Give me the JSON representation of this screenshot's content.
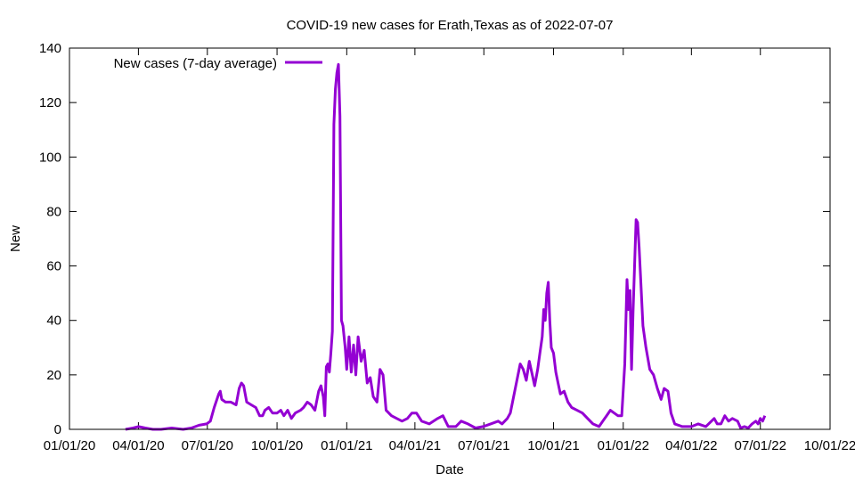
{
  "chart_data": {
    "type": "line",
    "title": "COVID-19 new cases for Erath,Texas as of 2022-07-07",
    "xlabel": "Date",
    "ylabel": "New",
    "xlim": [
      "2020-01-01",
      "2022-10-01"
    ],
    "ylim": [
      0,
      140
    ],
    "x_ticks": [
      "01/01/20",
      "04/01/20",
      "07/01/20",
      "10/01/20",
      "01/01/21",
      "04/01/21",
      "07/01/21",
      "10/01/21",
      "01/01/22",
      "04/01/22",
      "07/01/22",
      "10/01/22"
    ],
    "y_ticks": [
      0,
      20,
      40,
      60,
      80,
      100,
      120,
      140
    ],
    "grid": false,
    "legend_position": "top-left",
    "series": [
      {
        "name": "New cases (7-day average)",
        "color": "#9400d3",
        "points": [
          [
            "2020-03-15",
            0
          ],
          [
            "2020-03-25",
            0.5
          ],
          [
            "2020-04-01",
            1
          ],
          [
            "2020-04-10",
            0.5
          ],
          [
            "2020-04-20",
            0
          ],
          [
            "2020-05-01",
            0
          ],
          [
            "2020-05-15",
            0.5
          ],
          [
            "2020-05-30",
            0
          ],
          [
            "2020-06-10",
            0.5
          ],
          [
            "2020-06-20",
            1.5
          ],
          [
            "2020-06-30",
            2
          ],
          [
            "2020-07-05",
            3
          ],
          [
            "2020-07-10",
            8
          ],
          [
            "2020-07-16",
            13
          ],
          [
            "2020-07-18",
            14
          ],
          [
            "2020-07-20",
            11
          ],
          [
            "2020-07-25",
            10
          ],
          [
            "2020-08-01",
            10
          ],
          [
            "2020-08-08",
            9
          ],
          [
            "2020-08-12",
            15
          ],
          [
            "2020-08-15",
            17
          ],
          [
            "2020-08-18",
            16
          ],
          [
            "2020-08-22",
            10
          ],
          [
            "2020-08-28",
            9
          ],
          [
            "2020-09-03",
            8
          ],
          [
            "2020-09-08",
            5
          ],
          [
            "2020-09-12",
            5
          ],
          [
            "2020-09-15",
            7
          ],
          [
            "2020-09-20",
            8
          ],
          [
            "2020-09-25",
            6
          ],
          [
            "2020-10-01",
            6
          ],
          [
            "2020-10-06",
            7
          ],
          [
            "2020-10-10",
            5
          ],
          [
            "2020-10-15",
            7
          ],
          [
            "2020-10-20",
            4
          ],
          [
            "2020-10-25",
            6
          ],
          [
            "2020-11-01",
            7
          ],
          [
            "2020-11-05",
            8
          ],
          [
            "2020-11-10",
            10
          ],
          [
            "2020-11-15",
            9
          ],
          [
            "2020-11-20",
            7
          ],
          [
            "2020-11-25",
            14
          ],
          [
            "2020-11-28",
            16
          ],
          [
            "2020-12-01",
            12
          ],
          [
            "2020-12-03",
            5
          ],
          [
            "2020-12-05",
            23
          ],
          [
            "2020-12-07",
            24
          ],
          [
            "2020-12-09",
            21
          ],
          [
            "2020-12-11",
            28
          ],
          [
            "2020-12-13",
            36
          ],
          [
            "2020-12-15",
            112
          ],
          [
            "2020-12-17",
            125
          ],
          [
            "2020-12-19",
            131
          ],
          [
            "2020-12-21",
            134
          ],
          [
            "2020-12-23",
            115
          ],
          [
            "2020-12-25",
            40
          ],
          [
            "2020-12-27",
            38
          ],
          [
            "2020-12-30",
            30
          ],
          [
            "2021-01-01",
            22
          ],
          [
            "2021-01-04",
            34
          ],
          [
            "2021-01-07",
            21
          ],
          [
            "2021-01-10",
            31
          ],
          [
            "2021-01-13",
            20
          ],
          [
            "2021-01-16",
            34
          ],
          [
            "2021-01-20",
            25
          ],
          [
            "2021-01-24",
            29
          ],
          [
            "2021-01-28",
            17
          ],
          [
            "2021-02-01",
            19
          ],
          [
            "2021-02-05",
            12
          ],
          [
            "2021-02-10",
            10
          ],
          [
            "2021-02-14",
            22
          ],
          [
            "2021-02-18",
            20
          ],
          [
            "2021-02-22",
            7
          ],
          [
            "2021-03-01",
            5
          ],
          [
            "2021-03-08",
            4
          ],
          [
            "2021-03-15",
            3
          ],
          [
            "2021-03-22",
            4
          ],
          [
            "2021-03-28",
            6
          ],
          [
            "2021-04-03",
            6
          ],
          [
            "2021-04-10",
            3
          ],
          [
            "2021-04-20",
            2
          ],
          [
            "2021-05-01",
            4
          ],
          [
            "2021-05-08",
            5
          ],
          [
            "2021-05-15",
            1
          ],
          [
            "2021-05-25",
            1
          ],
          [
            "2021-06-01",
            3
          ],
          [
            "2021-06-10",
            2
          ],
          [
            "2021-06-20",
            0.5
          ],
          [
            "2021-06-30",
            1
          ],
          [
            "2021-07-10",
            2
          ],
          [
            "2021-07-20",
            3
          ],
          [
            "2021-07-25",
            2
          ],
          [
            "2021-08-01",
            4
          ],
          [
            "2021-08-05",
            6
          ],
          [
            "2021-08-10",
            13
          ],
          [
            "2021-08-15",
            20
          ],
          [
            "2021-08-18",
            24
          ],
          [
            "2021-08-22",
            22
          ],
          [
            "2021-08-26",
            18
          ],
          [
            "2021-08-30",
            25
          ],
          [
            "2021-09-03",
            20
          ],
          [
            "2021-09-06",
            16
          ],
          [
            "2021-09-10",
            22
          ],
          [
            "2021-09-13",
            28
          ],
          [
            "2021-09-16",
            34
          ],
          [
            "2021-09-18",
            44
          ],
          [
            "2021-09-20",
            40
          ],
          [
            "2021-09-22",
            50
          ],
          [
            "2021-09-24",
            54
          ],
          [
            "2021-09-26",
            40
          ],
          [
            "2021-09-28",
            30
          ],
          [
            "2021-10-01",
            28
          ],
          [
            "2021-10-04",
            21
          ],
          [
            "2021-10-07",
            17
          ],
          [
            "2021-10-10",
            13
          ],
          [
            "2021-10-15",
            14
          ],
          [
            "2021-10-20",
            10
          ],
          [
            "2021-10-25",
            8
          ],
          [
            "2021-11-01",
            7
          ],
          [
            "2021-11-08",
            6
          ],
          [
            "2021-11-15",
            4
          ],
          [
            "2021-11-22",
            2
          ],
          [
            "2021-11-30",
            1
          ],
          [
            "2021-12-05",
            3
          ],
          [
            "2021-12-10",
            5
          ],
          [
            "2021-12-15",
            7
          ],
          [
            "2021-12-20",
            6
          ],
          [
            "2021-12-25",
            5
          ],
          [
            "2021-12-30",
            5
          ],
          [
            "2022-01-03",
            24
          ],
          [
            "2022-01-06",
            55
          ],
          [
            "2022-01-08",
            44
          ],
          [
            "2022-01-10",
            51
          ],
          [
            "2022-01-12",
            22
          ],
          [
            "2022-01-14",
            43
          ],
          [
            "2022-01-16",
            60
          ],
          [
            "2022-01-18",
            77
          ],
          [
            "2022-01-20",
            76
          ],
          [
            "2022-01-22",
            67
          ],
          [
            "2022-01-24",
            55
          ],
          [
            "2022-01-27",
            38
          ],
          [
            "2022-01-31",
            30
          ],
          [
            "2022-02-05",
            22
          ],
          [
            "2022-02-10",
            20
          ],
          [
            "2022-02-15",
            15
          ],
          [
            "2022-02-20",
            11
          ],
          [
            "2022-02-24",
            15
          ],
          [
            "2022-03-01",
            14
          ],
          [
            "2022-03-05",
            6
          ],
          [
            "2022-03-10",
            2
          ],
          [
            "2022-03-20",
            1
          ],
          [
            "2022-04-01",
            1
          ],
          [
            "2022-04-10",
            2
          ],
          [
            "2022-04-20",
            1
          ],
          [
            "2022-05-01",
            4
          ],
          [
            "2022-05-05",
            2
          ],
          [
            "2022-05-10",
            2
          ],
          [
            "2022-05-15",
            5
          ],
          [
            "2022-05-20",
            3
          ],
          [
            "2022-05-25",
            4
          ],
          [
            "2022-06-01",
            3
          ],
          [
            "2022-06-05",
            0.5
          ],
          [
            "2022-06-10",
            1
          ],
          [
            "2022-06-15",
            0.5
          ],
          [
            "2022-06-20",
            2
          ],
          [
            "2022-06-25",
            3
          ],
          [
            "2022-06-28",
            2
          ],
          [
            "2022-07-01",
            4
          ],
          [
            "2022-07-04",
            3
          ],
          [
            "2022-07-07",
            5
          ]
        ]
      }
    ]
  }
}
